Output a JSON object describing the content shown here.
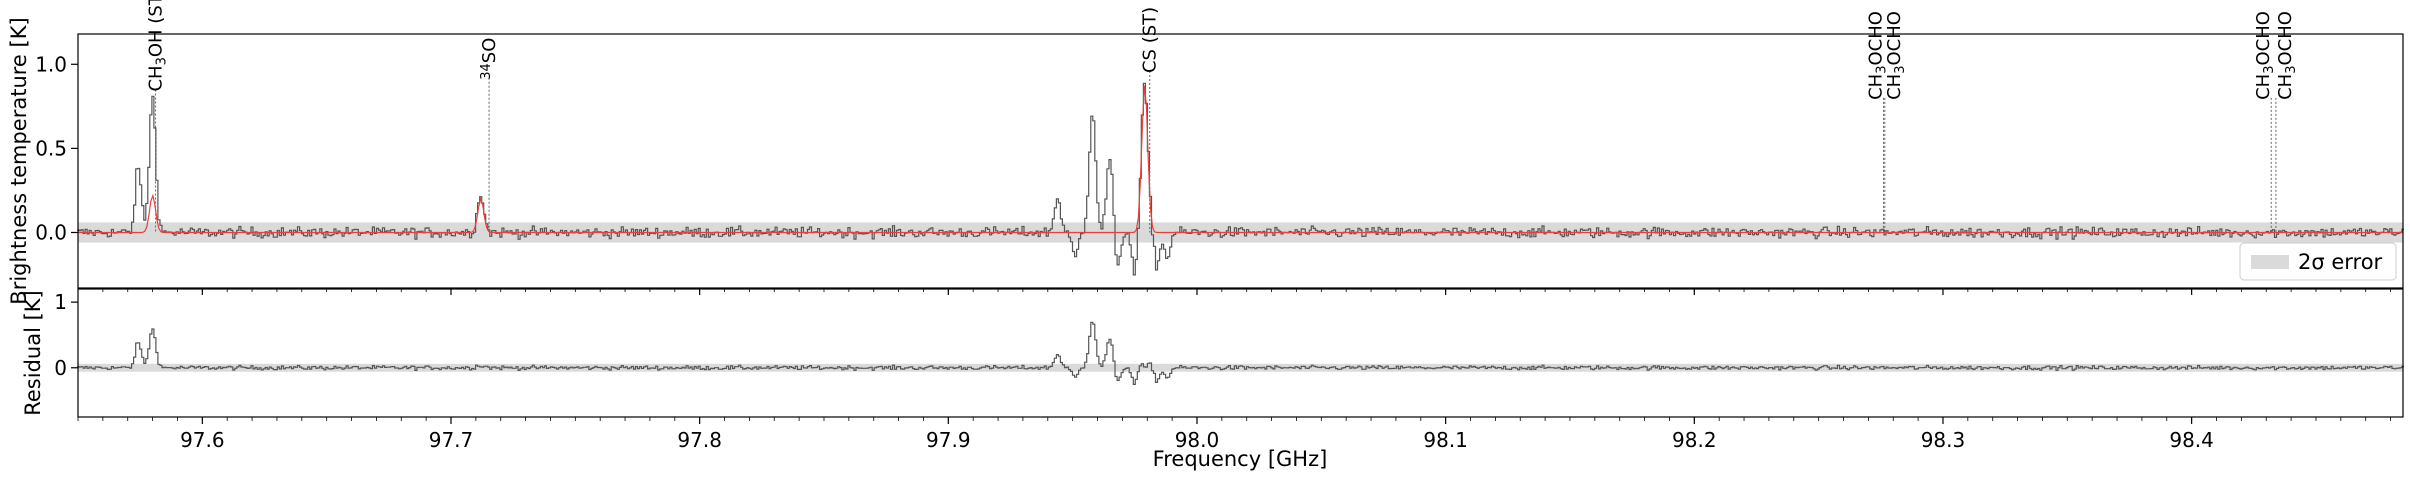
{
  "chart_data": [
    {
      "type": "line",
      "panel": "top",
      "ylabel": "Brightness temperature [K]",
      "xlim": [
        97.55,
        98.485
      ],
      "ylim": [
        -0.33,
        1.18
      ],
      "yticks": [
        0.0,
        0.5,
        1.0
      ],
      "ytick_labels": [
        "0.0",
        "0.5",
        "1.0"
      ],
      "error_band": [
        -0.06,
        0.06
      ],
      "legend": {
        "placement": "bottom-right",
        "label": "2σ error"
      },
      "series": [
        {
          "kind": "observed-step",
          "color": "#555555"
        },
        {
          "kind": "model-fit",
          "color": "#e8413a"
        }
      ],
      "line_markers": [
        {
          "freq": 97.5812,
          "label": "CH3OH (ST)",
          "y_top": 0.85
        },
        {
          "freq": 97.7153,
          "label": "34SO",
          "y_top": 0.92
        },
        {
          "freq": 97.981,
          "label": "CS (ST)",
          "y_top": 0.96
        },
        {
          "freq": 98.2761,
          "label": "CH3OCHO",
          "y_top": 0.8
        },
        {
          "freq": 98.2766,
          "label": "CH3OCHO",
          "y_top": 0.8
        },
        {
          "freq": 98.432,
          "label": "CH3OCHO",
          "y_top": 0.8
        },
        {
          "freq": 98.4339,
          "label": "CH3OCHO",
          "y_top": 0.8
        }
      ],
      "features": [
        {
          "freq": 97.58,
          "obs_peak": 0.8,
          "model_peak": 0.22
        },
        {
          "freq": 97.574,
          "obs_peak": 0.47,
          "model_peak": 0.0
        },
        {
          "freq": 97.712,
          "obs_peak": 0.23,
          "model_peak": 0.2
        },
        {
          "freq": 97.958,
          "obs_peak": 0.73,
          "model_peak": 0.0
        },
        {
          "freq": 97.965,
          "obs_peak": 0.45,
          "model_peak": 0.0
        },
        {
          "freq": 97.979,
          "obs_peak": 0.88,
          "model_peak": 0.88
        },
        {
          "freq": 97.944,
          "obs_peak": 0.2,
          "model_peak": 0.0
        }
      ]
    },
    {
      "type": "line",
      "panel": "bottom",
      "xlabel": "Frequency [GHz]",
      "ylabel": "Residual [K]",
      "xlim": [
        97.55,
        98.485
      ],
      "ylim": [
        -0.75,
        1.2
      ],
      "yticks": [
        0,
        1
      ],
      "ytick_labels": [
        "0",
        "1"
      ],
      "xticks": [
        97.6,
        97.7,
        97.8,
        97.9,
        98.0,
        98.1,
        98.2,
        98.3,
        98.4
      ],
      "xtick_labels": [
        "97.6",
        "97.7",
        "97.8",
        "97.9",
        "98.0",
        "98.1",
        "98.2",
        "98.3",
        "98.4"
      ],
      "error_band": [
        -0.06,
        0.06
      ],
      "series": [
        {
          "kind": "residual-step",
          "color": "#555555"
        }
      ]
    }
  ]
}
